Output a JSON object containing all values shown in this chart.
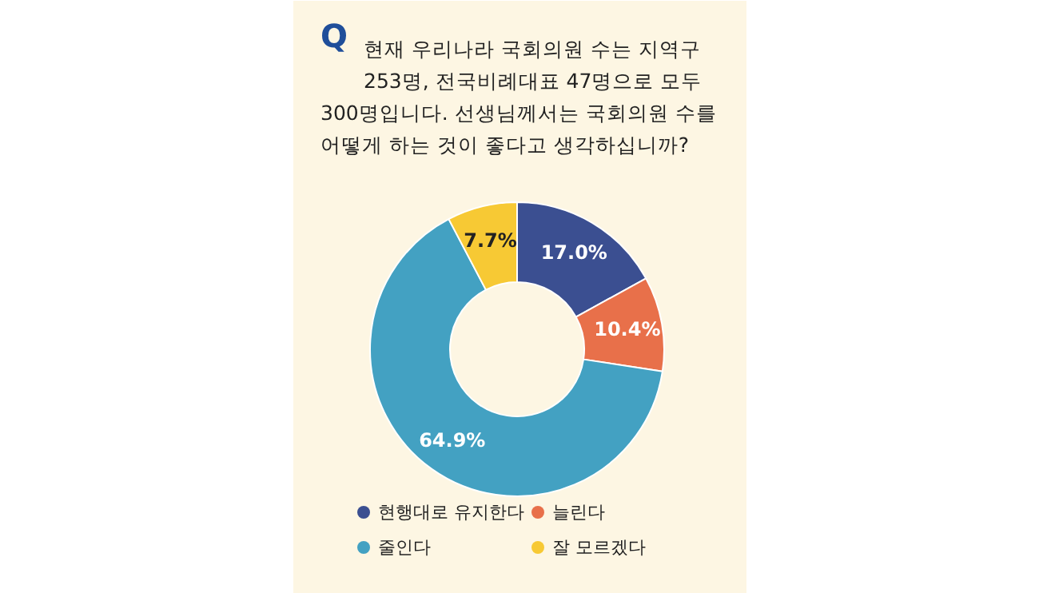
{
  "chart_data": {
    "type": "donut",
    "title": "현재 우리나라 국회의원 수는 지역구\n253명, 전국비례대표 47명으로 모두\n300명입니다. 선생님께서는 국회의원 수를\n어떻게 하는 것이 좋다고 생각하십니까?",
    "annotations": [
      "Q"
    ],
    "categories": [
      "현행대로 유지한다",
      "늘린다",
      "줄인다",
      "잘 모르겠다"
    ],
    "values": [
      17.0,
      10.4,
      64.9,
      7.7
    ],
    "colors": [
      "#3b4f91",
      "#e8704a",
      "#43a1c2",
      "#f7c934"
    ],
    "value_labels": [
      "17.0%",
      "10.4%",
      "64.9%",
      "7.7%"
    ],
    "legend": "bottom"
  }
}
